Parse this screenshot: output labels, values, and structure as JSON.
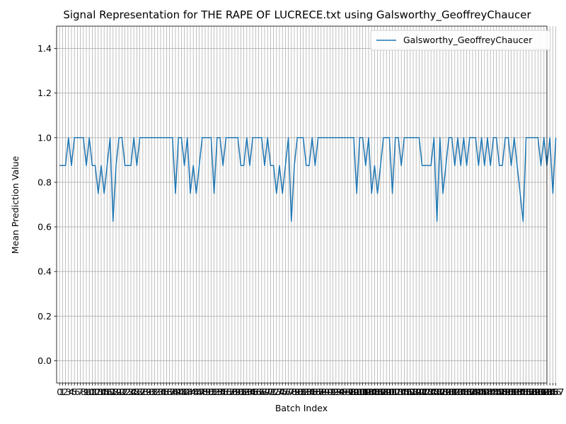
{
  "chart_data": {
    "type": "line",
    "title": "Signal Representation for THE RAPE OF LUCRECE.txt using Galsworthy_GeoffreyChaucer",
    "xlabel": "Batch Index",
    "ylabel": "Mean Prediction Value",
    "ylim": [
      -0.1,
      1.5
    ],
    "yticks": [
      "0.0",
      "0.2",
      "0.4",
      "0.6",
      "0.8",
      "1.0",
      "1.2",
      "1.4"
    ],
    "xlim": [
      -1,
      164
    ],
    "grid": true,
    "legend_position": "top-right",
    "line_color": "#1f77b4",
    "grid_color": "#b0b0b0",
    "series": [
      {
        "name": "Galsworthy_GeoffreyChaucer",
        "values": [
          0.875,
          0.875,
          0.875,
          1.0,
          0.875,
          1.0,
          1.0,
          1.0,
          1.0,
          0.875,
          1.0,
          0.875,
          0.875,
          0.75,
          0.875,
          0.75,
          0.875,
          1.0,
          0.625,
          0.875,
          1.0,
          1.0,
          0.875,
          0.875,
          0.875,
          1.0,
          0.875,
          1.0,
          1.0,
          1.0,
          1.0,
          1.0,
          1.0,
          1.0,
          1.0,
          1.0,
          1.0,
          1.0,
          1.0,
          0.75,
          1.0,
          1.0,
          0.875,
          1.0,
          0.75,
          0.875,
          0.75,
          0.875,
          1.0,
          1.0,
          1.0,
          1.0,
          0.75,
          1.0,
          1.0,
          0.875,
          1.0,
          1.0,
          1.0,
          1.0,
          1.0,
          0.875,
          0.875,
          1.0,
          0.875,
          1.0,
          1.0,
          1.0,
          1.0,
          0.875,
          1.0,
          0.875,
          0.875,
          0.75,
          0.875,
          0.75,
          0.875,
          1.0,
          0.625,
          0.875,
          1.0,
          1.0,
          1.0,
          0.875,
          0.875,
          1.0,
          0.875,
          1.0,
          1.0,
          1.0,
          1.0,
          1.0,
          1.0,
          1.0,
          1.0,
          1.0,
          1.0,
          1.0,
          1.0,
          1.0,
          0.75,
          1.0,
          1.0,
          0.875,
          1.0,
          0.75,
          0.875,
          0.75,
          0.875,
          1.0,
          1.0,
          1.0,
          0.75,
          1.0,
          1.0,
          0.875,
          1.0,
          1.0,
          1.0,
          1.0,
          1.0,
          1.0,
          0.875,
          0.875,
          0.875,
          0.875,
          1.0,
          0.625,
          1.0,
          0.75,
          0.875,
          1.0,
          1.0,
          0.875,
          1.0,
          0.875,
          1.0,
          0.875,
          1.0,
          1.0,
          1.0,
          0.875,
          1.0,
          0.875,
          1.0,
          0.875,
          1.0,
          1.0,
          0.875,
          0.875,
          1.0,
          1.0,
          0.875,
          1.0,
          0.875,
          0.75,
          0.625,
          1.0,
          1.0,
          1.0,
          1.0,
          1.0,
          0.875,
          1.0,
          0.875,
          1.0,
          0.75,
          1.0
        ]
      }
    ]
  }
}
